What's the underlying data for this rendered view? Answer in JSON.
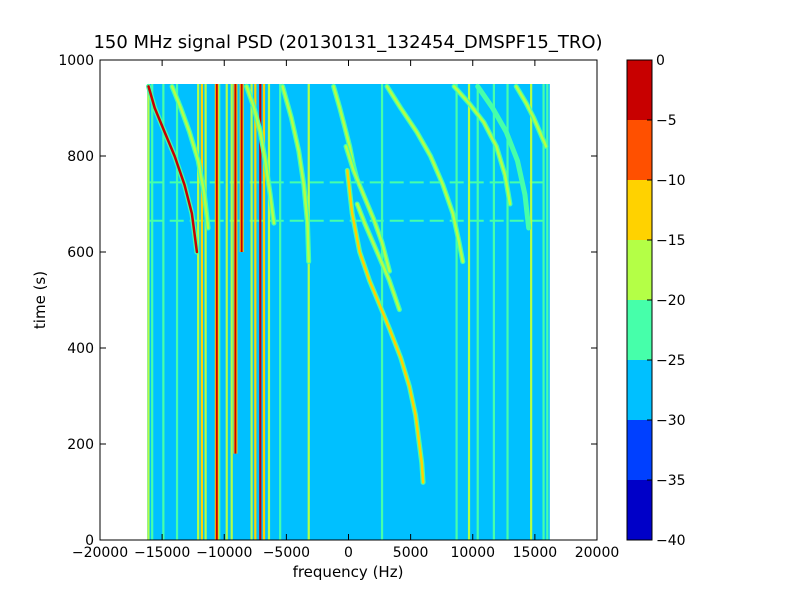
{
  "chart_data": {
    "type": "heatmap",
    "title": "150 MHz signal PSD (20130131_132454_DMSPF15_TRO)",
    "xlabel": "frequency (Hz)",
    "ylabel": "time (s)",
    "xlim": [
      -20000,
      20000
    ],
    "ylim": [
      0,
      1000
    ],
    "x_ticks": [
      -20000,
      -15000,
      -10000,
      -5000,
      0,
      5000,
      10000,
      15000,
      20000
    ],
    "x_tick_labels": [
      "−20000",
      "−15000",
      "−10000",
      "−5000",
      "0",
      "5000",
      "10000",
      "15000",
      "20000"
    ],
    "y_ticks": [
      0,
      200,
      400,
      600,
      800,
      1000
    ],
    "y_tick_labels": [
      "0",
      "200",
      "400",
      "600",
      "800",
      "1000"
    ],
    "data_extent": {
      "freq_min": -16200,
      "freq_max": 16200,
      "time_min": 0,
      "time_max": 950
    },
    "background_level": [
      -30,
      -25
    ],
    "colorbar": {
      "ticks": [
        0,
        -5,
        -10,
        -15,
        -20,
        -25,
        -30,
        -35,
        -40
      ],
      "tick_labels": [
        "0",
        "−5",
        "−10",
        "−15",
        "−20",
        "−25",
        "−30",
        "−35",
        "−40"
      ],
      "bins": [
        {
          "range": [
            -5,
            0
          ],
          "color": "#c80000"
        },
        {
          "range": [
            -10,
            -5
          ],
          "color": "#ff5000"
        },
        {
          "range": [
            -15,
            -10
          ],
          "color": "#ffd200"
        },
        {
          "range": [
            -20,
            -15
          ],
          "color": "#b4ff46"
        },
        {
          "range": [
            -25,
            -20
          ],
          "color": "#46ffaa"
        },
        {
          "range": [
            -30,
            -25
          ],
          "color": "#00c0ff"
        },
        {
          "range": [
            -35,
            -30
          ],
          "color": "#0040ff"
        },
        {
          "range": [
            -40,
            -35
          ],
          "color": "#0000c8"
        }
      ]
    },
    "vertical_lines": [
      {
        "f": -16100,
        "t0": 0,
        "t1": 950,
        "level": "-20..-15"
      },
      {
        "f": -15800,
        "t0": 0,
        "t1": 950,
        "level": "-25..-20"
      },
      {
        "f": -14900,
        "t0": 0,
        "t1": 950,
        "level": "-25..-20"
      },
      {
        "f": -13800,
        "t0": 0,
        "t1": 950,
        "level": "-25..-20"
      },
      {
        "f": -12100,
        "t0": 0,
        "t1": 950,
        "level": "-20..-15"
      },
      {
        "f": -11800,
        "t0": 0,
        "t1": 950,
        "level": "-15..-10"
      },
      {
        "f": -11500,
        "t0": 0,
        "t1": 950,
        "level": "-20..-15"
      },
      {
        "f": -10400,
        "t0": 0,
        "t1": 950,
        "level": "-25..-20"
      },
      {
        "f": -9800,
        "t0": 0,
        "t1": 950,
        "level": "-20..-15"
      },
      {
        "f": -9400,
        "t0": 0,
        "t1": 950,
        "level": "-20..-15"
      },
      {
        "f": -7800,
        "t0": 0,
        "t1": 950,
        "level": "-20..-15"
      },
      {
        "f": -7500,
        "t0": 0,
        "t1": 950,
        "level": "-15..-10"
      },
      {
        "f": -7100,
        "t0": 0,
        "t1": 950,
        "level": "-5..0"
      },
      {
        "f": -6800,
        "t0": 0,
        "t1": 950,
        "level": "-15..-10"
      },
      {
        "f": -6400,
        "t0": 0,
        "t1": 950,
        "level": "-20..-15"
      },
      {
        "f": -5500,
        "t0": 0,
        "t1": 950,
        "level": "-25..-20"
      },
      {
        "f": -3200,
        "t0": 0,
        "t1": 950,
        "level": "-20..-15"
      },
      {
        "f": 2700,
        "t0": 0,
        "t1": 950,
        "level": "-25..-20"
      },
      {
        "f": 8700,
        "t0": 0,
        "t1": 950,
        "level": "-25..-20"
      },
      {
        "f": 9700,
        "t0": 0,
        "t1": 950,
        "level": "-20..-15"
      },
      {
        "f": 10400,
        "t0": 0,
        "t1": 950,
        "level": "-25..-20"
      },
      {
        "f": 11700,
        "t0": 0,
        "t1": 950,
        "level": "-25..-20"
      },
      {
        "f": 12800,
        "t0": 0,
        "t1": 950,
        "level": "-25..-20"
      },
      {
        "f": 14700,
        "t0": 0,
        "t1": 950,
        "level": "-20..-15"
      },
      {
        "f": 15700,
        "t0": 0,
        "t1": 950,
        "level": "-25..-20"
      },
      {
        "f": 16000,
        "t0": 0,
        "t1": 950,
        "level": "-25..-20"
      }
    ],
    "red_lines": [
      {
        "f": -10600,
        "t0": 0,
        "t1": 950,
        "level": "-5..0"
      },
      {
        "f": -9100,
        "t0": 180,
        "t1": 950,
        "level": "-5..0"
      },
      {
        "f": -8600,
        "t0": 600,
        "t1": 950,
        "level": "-5..0"
      }
    ],
    "curves": [
      {
        "level": "-5..0",
        "points": [
          [
            -16100,
            945
          ],
          [
            -15600,
            900
          ],
          [
            -14800,
            850
          ],
          [
            -14000,
            800
          ],
          [
            -13200,
            740
          ],
          [
            -12600,
            680
          ],
          [
            -12200,
            600
          ]
        ]
      },
      {
        "level": "-20..-15",
        "points": [
          [
            -14200,
            945
          ],
          [
            -13500,
            900
          ],
          [
            -12800,
            850
          ],
          [
            -12100,
            790
          ],
          [
            -11600,
            720
          ],
          [
            -11300,
            650
          ]
        ]
      },
      {
        "level": "-20..-15",
        "points": [
          [
            -8200,
            945
          ],
          [
            -7600,
            900
          ],
          [
            -7100,
            850
          ],
          [
            -6700,
            790
          ],
          [
            -6300,
            720
          ],
          [
            -6000,
            660
          ]
        ]
      },
      {
        "level": "-20..-15",
        "points": [
          [
            -5300,
            945
          ],
          [
            -4600,
            880
          ],
          [
            -4000,
            810
          ],
          [
            -3600,
            740
          ],
          [
            -3300,
            660
          ],
          [
            -3200,
            580
          ]
        ]
      },
      {
        "level": "-20..-15",
        "points": [
          [
            -1200,
            945
          ],
          [
            -700,
            900
          ],
          [
            -300,
            860
          ],
          [
            100,
            820
          ],
          [
            400,
            780
          ],
          [
            700,
            750
          ]
        ]
      },
      {
        "level": "-15..-10",
        "points": [
          [
            -100,
            770
          ],
          [
            300,
            680
          ],
          [
            900,
            600
          ],
          [
            1700,
            540
          ],
          [
            2500,
            490
          ],
          [
            3300,
            440
          ],
          [
            4200,
            380
          ],
          [
            4900,
            320
          ],
          [
            5400,
            260
          ],
          [
            5700,
            200
          ],
          [
            5900,
            160
          ],
          [
            6000,
            120
          ]
        ]
      },
      {
        "level": "-20..-15",
        "points": [
          [
            700,
            700
          ],
          [
            1300,
            660
          ],
          [
            2300,
            600
          ],
          [
            3300,
            540
          ],
          [
            4100,
            480
          ]
        ]
      },
      {
        "level": "-20..-15",
        "points": [
          [
            -200,
            820
          ],
          [
            400,
            770
          ],
          [
            1200,
            720
          ],
          [
            2000,
            670
          ],
          [
            2700,
            620
          ],
          [
            3300,
            560
          ]
        ]
      },
      {
        "level": "-20..-15",
        "points": [
          [
            3100,
            945
          ],
          [
            4200,
            900
          ],
          [
            5500,
            850
          ],
          [
            6600,
            800
          ],
          [
            7600,
            740
          ],
          [
            8400,
            680
          ],
          [
            8900,
            620
          ],
          [
            9200,
            580
          ]
        ]
      },
      {
        "level": "-20..-15",
        "points": [
          [
            8500,
            945
          ],
          [
            9700,
            910
          ],
          [
            10900,
            870
          ],
          [
            11900,
            820
          ],
          [
            12600,
            760
          ],
          [
            13000,
            700
          ]
        ]
      },
      {
        "level": "-25..-20",
        "points": [
          [
            10400,
            945
          ],
          [
            11600,
            900
          ],
          [
            12700,
            850
          ],
          [
            13600,
            790
          ],
          [
            14200,
            720
          ],
          [
            14500,
            650
          ]
        ]
      },
      {
        "level": "-20..-15",
        "points": [
          [
            13500,
            945
          ],
          [
            14300,
            910
          ],
          [
            14900,
            880
          ],
          [
            15400,
            850
          ],
          [
            15900,
            820
          ]
        ]
      }
    ],
    "horizontal_bands": [
      {
        "t": 745,
        "f0": -16000,
        "f1": 16000,
        "level": "-25..-20"
      },
      {
        "t": 665,
        "f0": -16000,
        "f1": 16000,
        "level": "-25..-20"
      }
    ]
  }
}
